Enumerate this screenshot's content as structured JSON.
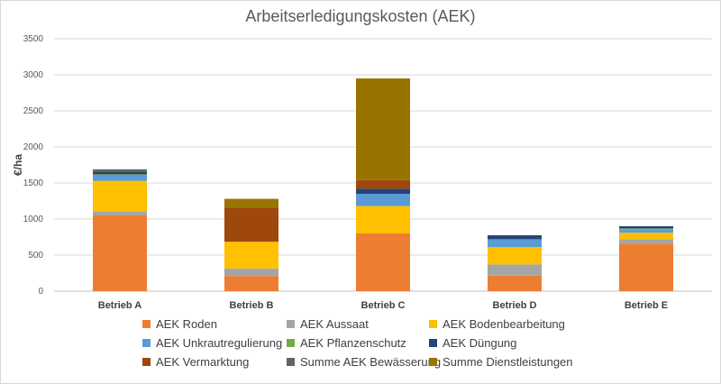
{
  "chart_data": {
    "type": "bar",
    "stacked": true,
    "title": "Arbeitserledigungskosten (AEK)",
    "xlabel": "",
    "ylabel": "€/ha",
    "ylim": [
      0,
      3500
    ],
    "yticks": [
      0,
      500,
      1000,
      1500,
      2000,
      2500,
      3000,
      3500
    ],
    "grid": true,
    "legend_position": "bottom",
    "categories": [
      "Betrieb A",
      "Betrieb B",
      "Betrieb C",
      "Betrieb D",
      "Betrieb E"
    ],
    "series": [
      {
        "name": "AEK Roden",
        "color": "#ED7D31",
        "values": [
          1050,
          210,
          800,
          215,
          660
        ]
      },
      {
        "name": "AEK Aussaat",
        "color": "#A5A5A5",
        "values": [
          50,
          105,
          0,
          155,
          60
        ]
      },
      {
        "name": "AEK Bodenbearbeitung",
        "color": "#FFC000",
        "values": [
          430,
          370,
          380,
          240,
          90
        ]
      },
      {
        "name": "AEK Unkrautregulierung",
        "color": "#5B9BD5",
        "values": [
          70,
          0,
          170,
          110,
          50
        ]
      },
      {
        "name": "AEK Pflanzenschutz",
        "color": "#70AD47",
        "values": [
          20,
          0,
          0,
          0,
          10
        ]
      },
      {
        "name": "AEK Düngung",
        "color": "#264478",
        "values": [
          30,
          0,
          70,
          55,
          30
        ]
      },
      {
        "name": "AEK Vermarktung",
        "color": "#9E480E",
        "values": [
          0,
          475,
          120,
          0,
          0
        ]
      },
      {
        "name": "Summe AEK Bewässerung",
        "color": "#636363",
        "values": [
          40,
          0,
          0,
          0,
          0
        ]
      },
      {
        "name": "Summe Dienstleistungen",
        "color": "#997300",
        "values": [
          0,
          120,
          1410,
          0,
          0
        ]
      }
    ]
  }
}
